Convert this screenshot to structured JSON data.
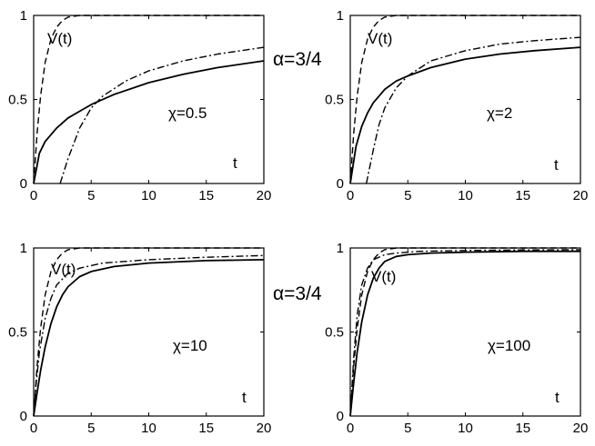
{
  "header_labels": [
    "α=3/4",
    "α=3/4"
  ],
  "chart_data": [
    {
      "type": "line",
      "xlim": [
        0,
        20
      ],
      "ylim": [
        0,
        1
      ],
      "xticks": [
        "0",
        "5",
        "10",
        "15",
        "20"
      ],
      "yticks": [
        "0",
        "0.5",
        "1"
      ],
      "xlabel": "t",
      "grid": false,
      "annotations": [
        "V(t)",
        "χ=0.5"
      ],
      "series": [
        {
          "style": "dashed",
          "label": "V(t)",
          "x": [
            0,
            0.3,
            0.6,
            1,
            1.5,
            2,
            2.5,
            3,
            4,
            20
          ],
          "values": [
            0,
            0.3,
            0.52,
            0.72,
            0.86,
            0.93,
            0.97,
            0.99,
            1,
            1
          ]
        },
        {
          "style": "solid",
          "x": [
            0,
            0.5,
            1,
            2,
            3,
            5,
            7,
            10,
            13,
            16,
            20
          ],
          "values": [
            0,
            0.18,
            0.25,
            0.33,
            0.39,
            0.47,
            0.53,
            0.6,
            0.65,
            0.69,
            0.73
          ]
        },
        {
          "style": "dashdot",
          "x": [
            2.3,
            3,
            4,
            5,
            6,
            8,
            10,
            13,
            16,
            20
          ],
          "values": [
            0,
            0.15,
            0.33,
            0.45,
            0.52,
            0.61,
            0.67,
            0.73,
            0.77,
            0.81
          ]
        }
      ]
    },
    {
      "type": "line",
      "xlim": [
        0,
        20
      ],
      "ylim": [
        0,
        1
      ],
      "xticks": [
        "0",
        "5",
        "10",
        "15",
        "20"
      ],
      "yticks": [
        "0",
        "0.5",
        "1"
      ],
      "xlabel": "t",
      "grid": false,
      "annotations": [
        "V(t)",
        "χ=2"
      ],
      "series": [
        {
          "style": "dashed",
          "label": "V(t)",
          "x": [
            0,
            0.3,
            0.6,
            1,
            1.5,
            2,
            2.5,
            3,
            4,
            20
          ],
          "values": [
            0,
            0.3,
            0.52,
            0.72,
            0.86,
            0.93,
            0.97,
            0.99,
            1,
            1
          ]
        },
        {
          "style": "solid",
          "x": [
            0,
            0.5,
            1,
            1.5,
            2,
            3,
            4,
            5,
            7,
            10,
            13,
            16,
            20
          ],
          "values": [
            0,
            0.22,
            0.34,
            0.42,
            0.48,
            0.56,
            0.61,
            0.64,
            0.69,
            0.74,
            0.77,
            0.79,
            0.81
          ]
        },
        {
          "style": "dashdot",
          "x": [
            1.4,
            2,
            2.5,
            3,
            4,
            5,
            7,
            10,
            13,
            16,
            20
          ],
          "values": [
            0,
            0.2,
            0.35,
            0.45,
            0.57,
            0.64,
            0.73,
            0.79,
            0.83,
            0.85,
            0.87
          ]
        }
      ]
    },
    {
      "type": "line",
      "xlim": [
        0,
        20
      ],
      "ylim": [
        0,
        1
      ],
      "xticks": [
        "0",
        "5",
        "10",
        "15",
        "20"
      ],
      "yticks": [
        "0",
        "0.5",
        "1"
      ],
      "xlabel": "t",
      "grid": false,
      "annotations": [
        "V(t)",
        "χ=10"
      ],
      "series": [
        {
          "style": "dashed",
          "label": "V(t)",
          "x": [
            0,
            0.3,
            0.6,
            1,
            1.5,
            2,
            2.5,
            3,
            4,
            20
          ],
          "values": [
            0,
            0.3,
            0.52,
            0.72,
            0.86,
            0.93,
            0.97,
            0.99,
            1,
            1
          ]
        },
        {
          "style": "solid",
          "x": [
            0,
            0.3,
            0.6,
            1,
            1.5,
            2,
            2.5,
            3,
            4,
            5,
            7,
            10,
            15,
            20
          ],
          "values": [
            0,
            0.14,
            0.27,
            0.41,
            0.55,
            0.65,
            0.72,
            0.77,
            0.83,
            0.86,
            0.89,
            0.91,
            0.925,
            0.93
          ]
        },
        {
          "style": "dashdot",
          "x": [
            0,
            0.2,
            0.5,
            1,
            1.5,
            2,
            3,
            4,
            6,
            10,
            15,
            20
          ],
          "values": [
            0,
            0.18,
            0.38,
            0.58,
            0.7,
            0.78,
            0.85,
            0.88,
            0.91,
            0.93,
            0.945,
            0.955
          ]
        }
      ]
    },
    {
      "type": "line",
      "xlim": [
        0,
        20
      ],
      "ylim": [
        0,
        1
      ],
      "xticks": [
        "0",
        "5",
        "10",
        "15",
        "20"
      ],
      "yticks": [
        "0",
        "0.5",
        "1"
      ],
      "xlabel": "t",
      "grid": false,
      "annotations": [
        "V(t)",
        "χ=100"
      ],
      "series": [
        {
          "style": "dashed",
          "label": "V(t)",
          "x": [
            0,
            0.3,
            0.6,
            1,
            1.5,
            2,
            2.5,
            3,
            4,
            20
          ],
          "values": [
            0,
            0.3,
            0.52,
            0.72,
            0.86,
            0.93,
            0.97,
            0.99,
            1,
            1
          ]
        },
        {
          "style": "solid",
          "x": [
            0,
            0.3,
            0.6,
            1,
            1.5,
            2,
            2.5,
            3,
            4,
            5,
            7,
            10,
            15,
            20
          ],
          "values": [
            0,
            0.2,
            0.38,
            0.56,
            0.72,
            0.82,
            0.88,
            0.92,
            0.95,
            0.96,
            0.97,
            0.975,
            0.98,
            0.98
          ]
        },
        {
          "style": "dashdot",
          "x": [
            0,
            0.3,
            0.6,
            1,
            1.5,
            2,
            3,
            4,
            6,
            10,
            15,
            20
          ],
          "values": [
            0,
            0.35,
            0.6,
            0.78,
            0.88,
            0.93,
            0.96,
            0.97,
            0.98,
            0.985,
            0.988,
            0.99
          ]
        }
      ]
    }
  ]
}
